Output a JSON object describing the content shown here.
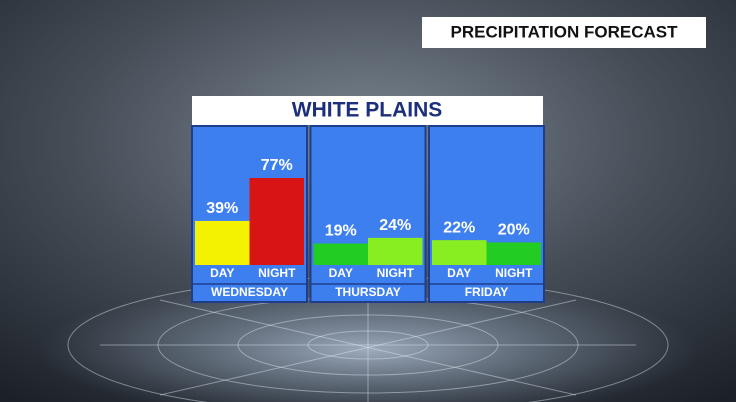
{
  "chart_data": {
    "type": "bar",
    "header": "PRECIPITATION FORECAST",
    "title": "WHITE PLAINS",
    "ylim": [
      0,
      100
    ],
    "groups": [
      {
        "name": "WEDNESDAY",
        "categories": [
          "DAY",
          "NIGHT"
        ],
        "values": [
          39,
          77
        ],
        "value_labels": [
          "39%",
          "77%"
        ],
        "colors": [
          "#f4f200",
          "#d81414"
        ]
      },
      {
        "name": "THURSDAY",
        "categories": [
          "DAY",
          "NIGHT"
        ],
        "values": [
          19,
          24
        ],
        "value_labels": [
          "19%",
          "24%"
        ],
        "colors": [
          "#22cc22",
          "#88ee22"
        ]
      },
      {
        "name": "FRIDAY",
        "categories": [
          "DAY",
          "NIGHT"
        ],
        "values": [
          22,
          20
        ],
        "value_labels": [
          "22%",
          "20%"
        ],
        "colors": [
          "#88ee22",
          "#22cc22"
        ]
      }
    ]
  }
}
